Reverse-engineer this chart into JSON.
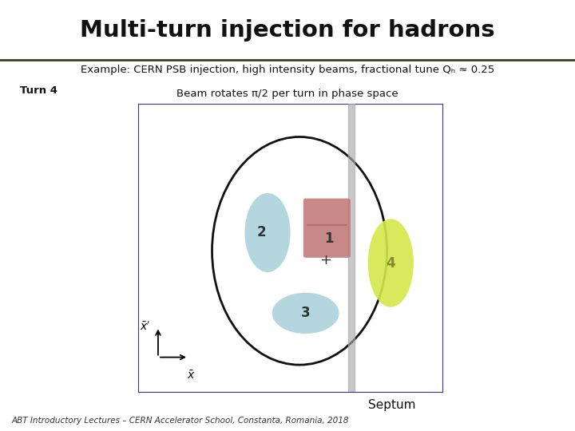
{
  "title": "Multi-turn injection for hadrons",
  "header_bg": "#f0f5e8",
  "subtitle_line1": "Example: CERN PSB injection, high intensity beams, fractional tune Qₕ ≈ 0.25",
  "subtitle_line2": "Beam rotates π/2 per turn in phase space",
  "turn_label": "Turn 4",
  "septum_label": "Septum",
  "footer": "ABT Introductory Lectures – CERN Accelerator School, Constanta, Romania, 2018",
  "bg_color": "#ffffff",
  "plot_bg": "#ffffff",
  "border_color": "#3333aa",
  "circle_color": "#111111",
  "septum_color": "#aaaaaa",
  "color_1": "#c07878",
  "color_2": "#a0ccd8",
  "color_3": "#a0ccd8",
  "color_4": "#d4e84a",
  "label_color_124": "#333333",
  "label_color_4": "#888833",
  "plus_color": "#333333",
  "axis_arrow_color": "#000000",
  "xbar_label": "$\\bar{x}$",
  "xpbar_label": "$\\bar{x}'$"
}
